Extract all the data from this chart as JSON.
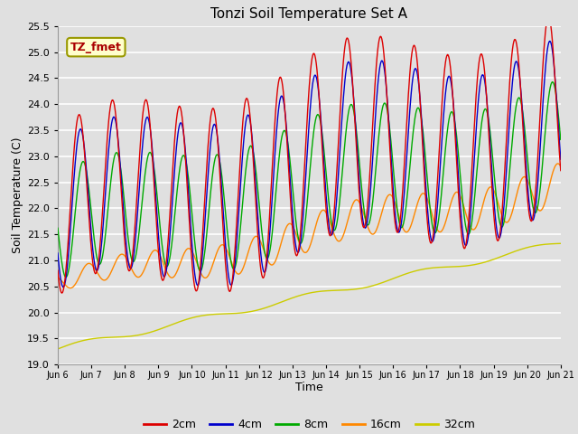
{
  "title": "Tonzi Soil Temperature Set A",
  "xlabel": "Time",
  "ylabel": "Soil Temperature (C)",
  "ylim": [
    19.0,
    25.5
  ],
  "yticks": [
    19.0,
    19.5,
    20.0,
    20.5,
    21.0,
    21.5,
    22.0,
    22.5,
    23.0,
    23.5,
    24.0,
    24.5,
    25.0,
    25.5
  ],
  "annotation": "TZ_fmet",
  "series": {
    "2cm": {
      "color": "#dd0000"
    },
    "4cm": {
      "color": "#0000cc"
    },
    "8cm": {
      "color": "#00aa00"
    },
    "16cm": {
      "color": "#ff8800"
    },
    "32cm": {
      "color": "#cccc00"
    }
  },
  "background_color": "#e0e0e0",
  "plot_bg_color": "#e0e0e0",
  "grid_color": "#ffffff",
  "xtick_labels": [
    "Jun 6",
    "Jun 7",
    "Jun 8",
    "Jun 9",
    "Jun 10",
    "Jun 11",
    "Jun 12",
    "Jun 13",
    "Jun 14",
    "Jun 15",
    "Jun 16",
    "Jun 17",
    "Jun 18",
    "Jun 19",
    "Jun 20",
    "Jun 21"
  ]
}
